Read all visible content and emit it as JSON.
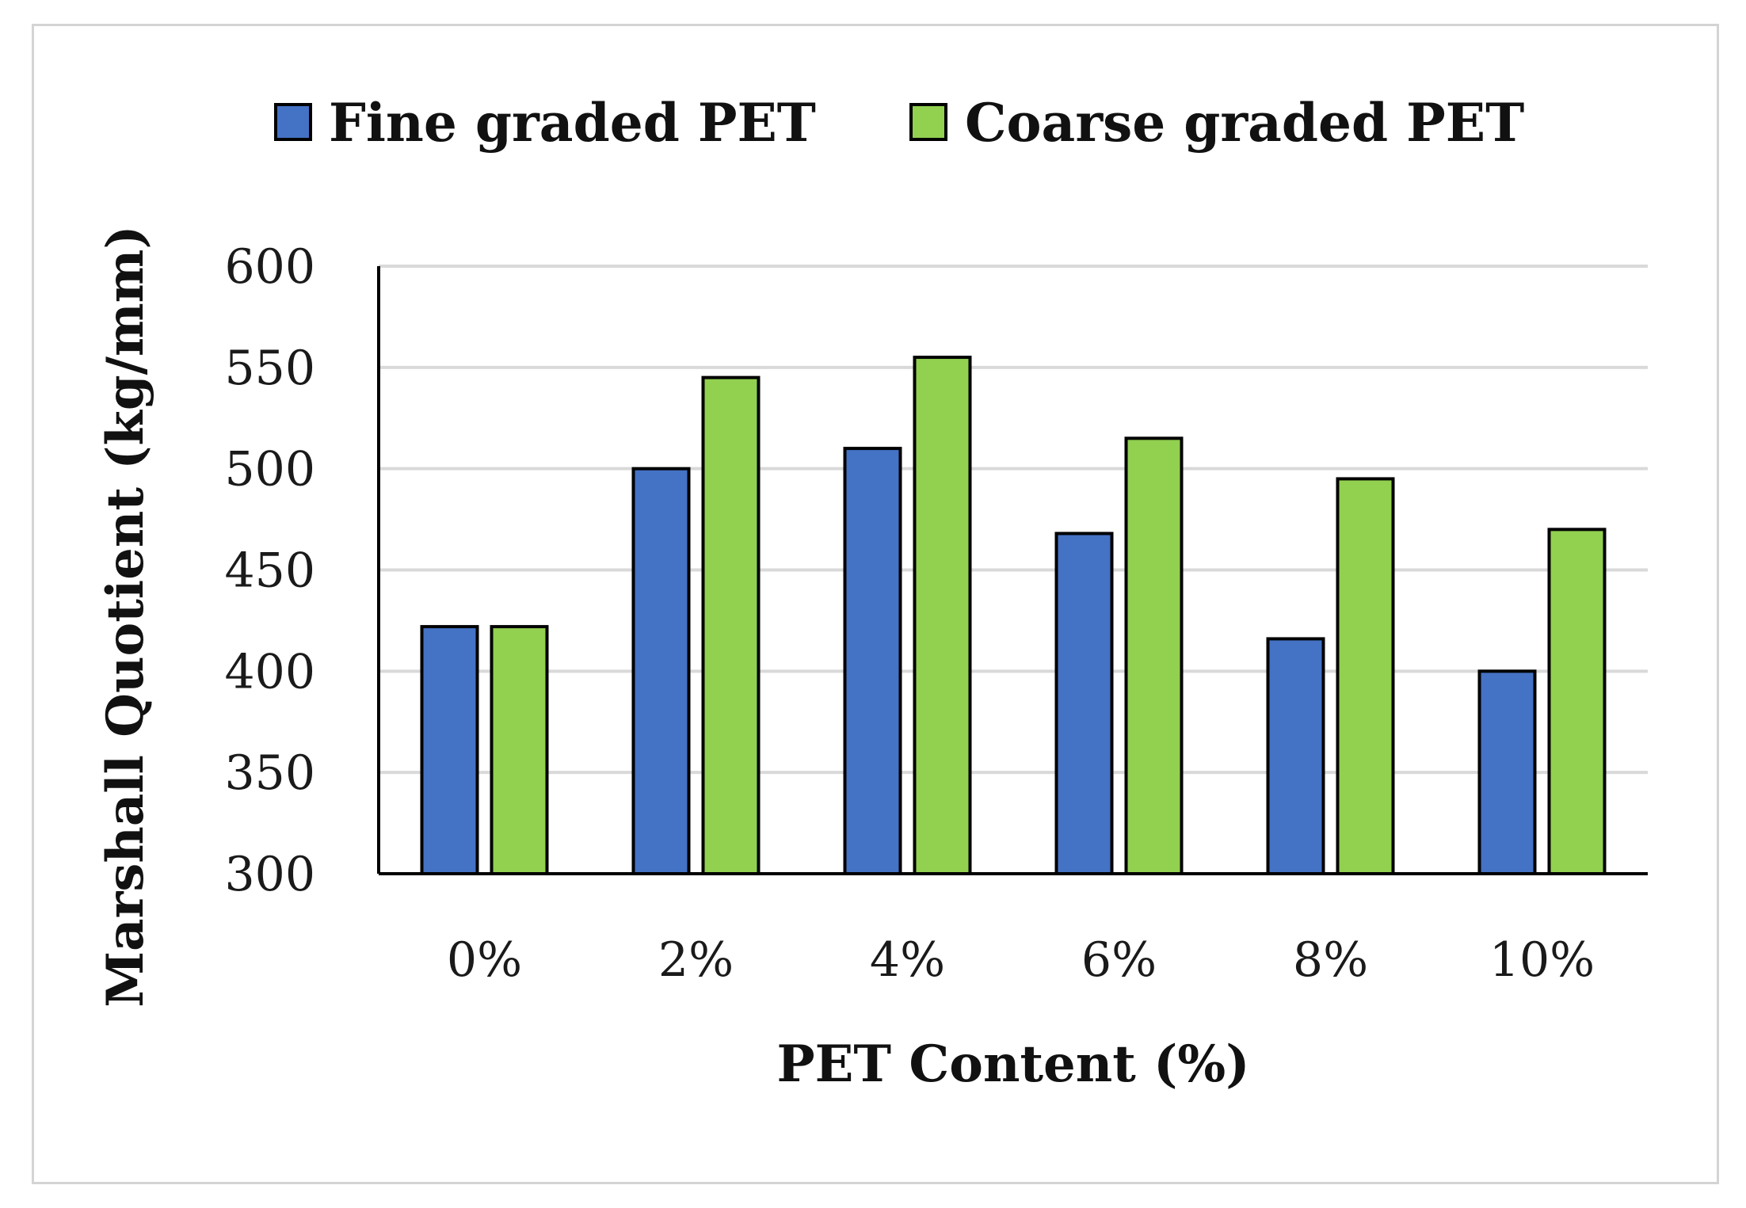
{
  "chart_data": {
    "type": "bar",
    "title": "",
    "xlabel": "PET Content (%)",
    "ylabel": "Marshall Quotient (kg/mm)",
    "categories": [
      "0%",
      "2%",
      "4%",
      "6%",
      "8%",
      "10%"
    ],
    "series": [
      {
        "name": "Fine graded PET",
        "color": "#4472C4",
        "values": [
          422,
          500,
          510,
          468,
          416,
          400
        ]
      },
      {
        "name": "Coarse graded PET",
        "color": "#92D050",
        "values": [
          422,
          545,
          555,
          515,
          495,
          470
        ]
      }
    ],
    "ylim": [
      300,
      600
    ],
    "yticks": [
      300,
      350,
      400,
      450,
      500,
      550,
      600
    ],
    "grid": true,
    "legend_position": "top"
  }
}
